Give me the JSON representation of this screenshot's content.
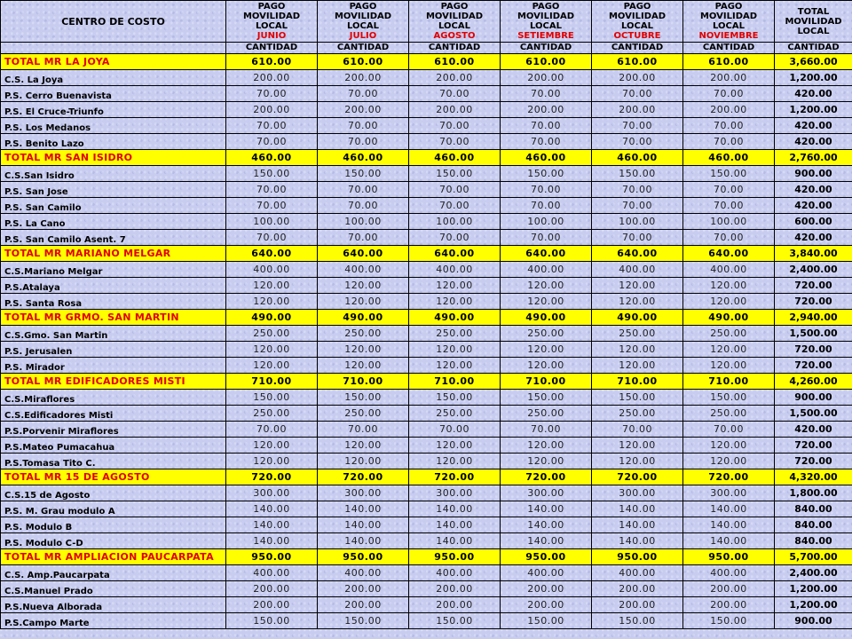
{
  "header": {
    "center_label": "CENTRO DE COSTO",
    "pago_lines": [
      "PAGO",
      "MOVILIDAD",
      "LOCAL"
    ],
    "months": [
      "JUNIO",
      "JULIO",
      "AGOSTO",
      "SETIEMBRE",
      "OCTUBRE",
      "NOVIEMBRE"
    ],
    "total_lines": [
      "TOTAL",
      "MOVILIDAD",
      "LOCAL"
    ],
    "cantidad": "CANTIDAD"
  },
  "rows": [
    {
      "type": "total",
      "name": "TOTAL MR LA JOYA",
      "value": "610.00",
      "total": "3,660.00"
    },
    {
      "type": "item",
      "name": "C.S.  La Joya",
      "value": "200.00",
      "total": "1,200.00"
    },
    {
      "type": "item",
      "name": "P.S. Cerro Buenavista",
      "value": "70.00",
      "total": "420.00"
    },
    {
      "type": "item",
      "name": "P.S. El Cruce-Triunfo",
      "value": "200.00",
      "total": "1,200.00"
    },
    {
      "type": "item",
      "name": "P.S. Los Medanos",
      "value": "70.00",
      "total": "420.00"
    },
    {
      "type": "item",
      "name": "P.S. Benito Lazo",
      "value": "70.00",
      "total": "420.00"
    },
    {
      "type": "total",
      "name": "TOTAL MR SAN ISIDRO",
      "value": "460.00",
      "total": "2,760.00"
    },
    {
      "type": "item",
      "name": "C.S.San Isidro",
      "value": "150.00",
      "total": "900.00"
    },
    {
      "type": "item",
      "name": "P.S. San Jose",
      "value": "70.00",
      "total": "420.00"
    },
    {
      "type": "item",
      "name": "P.S. San Camilo",
      "value": "70.00",
      "total": "420.00"
    },
    {
      "type": "item",
      "name": "P.S. La Cano",
      "value": "100.00",
      "total": "600.00"
    },
    {
      "type": "item",
      "name": "P.S. San Camilo Asent. 7",
      "value": "70.00",
      "total": "420.00"
    },
    {
      "type": "total",
      "name": "TOTAL MR MARIANO MELGAR",
      "value": "640.00",
      "total": "3,840.00"
    },
    {
      "type": "item",
      "name": "C.S.Mariano Melgar",
      "value": "400.00",
      "total": "2,400.00"
    },
    {
      "type": "item",
      "name": "P.S.Atalaya",
      "value": "120.00",
      "total": "720.00"
    },
    {
      "type": "item",
      "name": "P.S.  Santa Rosa",
      "value": "120.00",
      "total": "720.00"
    },
    {
      "type": "total",
      "name": "TOTAL MR GRMO. SAN MARTIN",
      "value": "490.00",
      "total": "2,940.00"
    },
    {
      "type": "item",
      "name": "C.S.Gmo. San Martin",
      "value": "250.00",
      "total": "1,500.00"
    },
    {
      "type": "item",
      "name": "P.S. Jerusalen",
      "value": "120.00",
      "total": "720.00"
    },
    {
      "type": "item",
      "name": "P.S. Mirador",
      "value": "120.00",
      "total": "720.00"
    },
    {
      "type": "total",
      "name": "TOTAL MR EDIFICADORES MISTI",
      "value": "710.00",
      "total": "4,260.00"
    },
    {
      "type": "item",
      "name": "C.S.Miraflores",
      "value": "150.00",
      "total": "900.00"
    },
    {
      "type": "item",
      "name": "C.S.Edificadores Misti",
      "value": "250.00",
      "total": "1,500.00"
    },
    {
      "type": "item",
      "name": "P.S.Porvenir Miraflores",
      "value": "70.00",
      "total": "420.00"
    },
    {
      "type": "item",
      "name": "P.S.Mateo Pumacahua",
      "value": "120.00",
      "total": "720.00"
    },
    {
      "type": "item",
      "name": "P.S.Tomasa Tito C.",
      "value": "120.00",
      "total": "720.00"
    },
    {
      "type": "total",
      "name": "TOTAL MR 15 DE AGOSTO",
      "value": "720.00",
      "total": "4,320.00"
    },
    {
      "type": "item",
      "name": "C.S.15 de Agosto",
      "value": "300.00",
      "total": "1,800.00"
    },
    {
      "type": "item",
      "name": "P.S. M.  Grau modulo A",
      "value": "140.00",
      "total": "840.00"
    },
    {
      "type": "item",
      "name": "P.S. Modulo B",
      "value": "140.00",
      "total": "840.00"
    },
    {
      "type": "item",
      "name": "P.S. Modulo C-D",
      "value": "140.00",
      "total": "840.00"
    },
    {
      "type": "total",
      "name": "TOTAL MR AMPLIACION PAUCARPATA",
      "value": "950.00",
      "total": "5,700.00"
    },
    {
      "type": "item",
      "name": "C.S. Amp.Paucarpata",
      "value": "400.00",
      "total": "2,400.00"
    },
    {
      "type": "item",
      "name": "C.S.Manuel Prado",
      "value": "200.00",
      "total": "1,200.00"
    },
    {
      "type": "item",
      "name": "P.S.Nueva Alborada",
      "value": "200.00",
      "total": "1,200.00"
    },
    {
      "type": "item",
      "name": "P.S.Campo Marte",
      "value": "150.00",
      "total": "900.00"
    }
  ]
}
